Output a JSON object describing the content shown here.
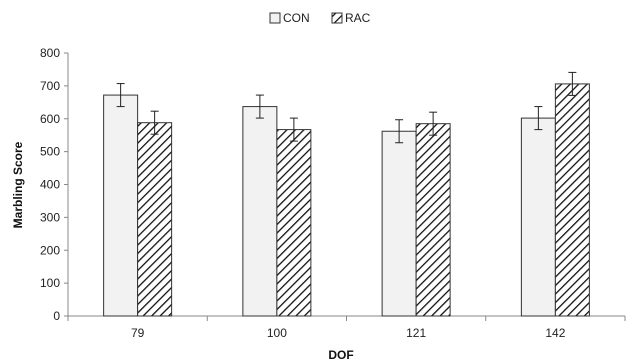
{
  "chart_data": {
    "type": "bar",
    "categories": [
      "79",
      "100",
      "121",
      "142"
    ],
    "series": [
      {
        "name": "CON",
        "values": [
          672,
          637,
          562,
          602
        ],
        "errors": [
          35,
          35,
          35,
          35
        ],
        "fill": "#f2f2f2",
        "pattern": "solid"
      },
      {
        "name": "RAC",
        "values": [
          588,
          567,
          585,
          706
        ],
        "errors": [
          35,
          35,
          35,
          35
        ],
        "fill": "#ffffff",
        "pattern": "diagonal-hatch"
      }
    ],
    "title": "",
    "xlabel": "DOF",
    "ylabel": "Marbling Score",
    "ylim": [
      0,
      800
    ],
    "yticks": [
      "0",
      "100",
      "200",
      "300",
      "400",
      "500",
      "600",
      "700",
      "800"
    ],
    "grid": false,
    "legend_position": "top-center"
  }
}
